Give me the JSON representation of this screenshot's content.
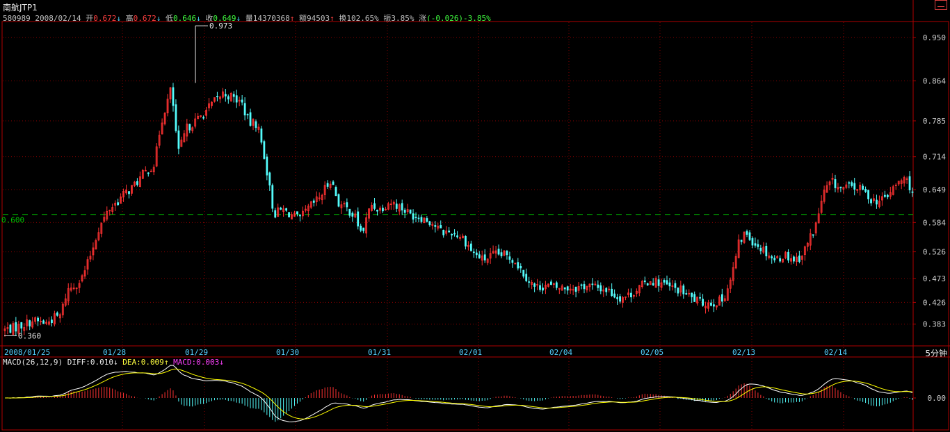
{
  "header": {
    "title": "南航JTP1",
    "code": "580989",
    "date": "2008/02/14",
    "open_label": "开",
    "open": "0.672",
    "high_label": "高",
    "high": "0.672",
    "low_label": "低",
    "low": "0.646",
    "close_label": "收",
    "close": "0.649",
    "vol_label": "量",
    "vol": "14370368",
    "amt_label": "额",
    "amt": "94503",
    "turn_label": "换",
    "turn": "102.65%",
    "amp_label": "振",
    "amp": "3.85%",
    "chg_label": "涨",
    "chg": "(-0.026)-3.85%",
    "arrow_up": "↑",
    "arrow_down": "↓"
  },
  "period_label": "5分钟",
  "macd_header": {
    "label": "MACD(26,12,9)",
    "diff": "DIFF:0.010",
    "dea": "DEA:0.009",
    "macd": "MACD:0.003",
    "diff_arrow": "↓",
    "dea_arrow": "↑",
    "macd_arrow": "↓"
  },
  "colors": {
    "up": "#ff3232",
    "down": "#54fcfc",
    "grid": "#8b0000",
    "frame": "#b00000",
    "ref": "#00c000",
    "macd_diff": "#ffffff",
    "macd_dea": "#ffff00"
  },
  "chart_data": [
    {
      "type": "candlestick",
      "ylim": [
        0.34,
        0.98
      ],
      "y_ticks": [
        "0.950",
        "0.864",
        "0.785",
        "0.714",
        "0.649",
        "0.584",
        "0.526",
        "0.473",
        "0.426",
        "0.383"
      ],
      "y_tick_values": [
        0.95,
        0.864,
        0.785,
        0.714,
        0.649,
        0.584,
        0.526,
        0.473,
        0.426,
        0.383
      ],
      "x_labels": [
        "2008/01/25",
        "01/28",
        "01/29",
        "01/30",
        "01/31",
        "02/01",
        "02/04",
        "02/05",
        "02/13",
        "02/14"
      ],
      "reference_line": {
        "value": 0.6,
        "label": "0.600"
      },
      "annotations": [
        {
          "label": "0.973",
          "value": 0.973,
          "bar": 69
        },
        {
          "label": "0.360",
          "value": 0.36,
          "bar": 0
        }
      ],
      "n_bars": 330,
      "close_path": [
        [
          0,
          0.372
        ],
        [
          20,
          0.378
        ],
        [
          40,
          0.39
        ],
        [
          60,
          0.385
        ],
        [
          70,
          0.395
        ],
        [
          80,
          0.4
        ],
        [
          90,
          0.45
        ],
        [
          110,
          0.47
        ],
        [
          120,
          0.505
        ],
        [
          135,
          0.57
        ],
        [
          150,
          0.61
        ],
        [
          162,
          0.625
        ],
        [
          172,
          0.64
        ],
        [
          185,
          0.655
        ],
        [
          200,
          0.68
        ],
        [
          216,
          0.7
        ],
        [
          225,
          0.78
        ],
        [
          240,
          0.85
        ],
        [
          250,
          0.72
        ],
        [
          262,
          0.77
        ],
        [
          280,
          0.79
        ],
        [
          300,
          0.82
        ],
        [
          315,
          0.84
        ],
        [
          330,
          0.83
        ],
        [
          342,
          0.82
        ],
        [
          352,
          0.78
        ],
        [
          364,
          0.78
        ],
        [
          375,
          0.71
        ],
        [
          388,
          0.6
        ],
        [
          400,
          0.61
        ],
        [
          412,
          0.6
        ],
        [
          425,
          0.59
        ],
        [
          440,
          0.615
        ],
        [
          455,
          0.635
        ],
        [
          470,
          0.67
        ],
        [
          482,
          0.62
        ],
        [
          495,
          0.61
        ],
        [
          505,
          0.595
        ],
        [
          515,
          0.56
        ],
        [
          528,
          0.62
        ],
        [
          540,
          0.61
        ],
        [
          555,
          0.625
        ],
        [
          570,
          0.615
        ],
        [
          585,
          0.6
        ],
        [
          600,
          0.595
        ],
        [
          615,
          0.585
        ],
        [
          630,
          0.565
        ],
        [
          645,
          0.565
        ],
        [
          660,
          0.555
        ],
        [
          675,
          0.525
        ],
        [
          690,
          0.51
        ],
        [
          705,
          0.52
        ],
        [
          720,
          0.52
        ],
        [
          735,
          0.51
        ],
        [
          750,
          0.48
        ],
        [
          765,
          0.455
        ],
        [
          780,
          0.46
        ],
        [
          795,
          0.455
        ],
        [
          810,
          0.455
        ],
        [
          825,
          0.455
        ],
        [
          840,
          0.46
        ],
        [
          855,
          0.455
        ],
        [
          870,
          0.45
        ],
        [
          885,
          0.435
        ],
        [
          900,
          0.44
        ],
        [
          915,
          0.455
        ],
        [
          930,
          0.47
        ],
        [
          945,
          0.465
        ],
        [
          960,
          0.455
        ],
        [
          975,
          0.45
        ],
        [
          990,
          0.435
        ],
        [
          1005,
          0.425
        ],
        [
          1020,
          0.425
        ],
        [
          1035,
          0.43
        ],
        [
          1048,
          0.475
        ],
        [
          1058,
          0.54
        ],
        [
          1068,
          0.565
        ],
        [
          1080,
          0.545
        ],
        [
          1095,
          0.53
        ],
        [
          1110,
          0.51
        ],
        [
          1125,
          0.52
        ],
        [
          1140,
          0.51
        ],
        [
          1150,
          0.52
        ],
        [
          1160,
          0.55
        ],
        [
          1170,
          0.58
        ],
        [
          1180,
          0.64
        ],
        [
          1192,
          0.665
        ],
        [
          1205,
          0.65
        ],
        [
          1220,
          0.655
        ],
        [
          1235,
          0.65
        ],
        [
          1250,
          0.63
        ],
        [
          1262,
          0.625
        ],
        [
          1275,
          0.64
        ],
        [
          1290,
          0.665
        ],
        [
          1300,
          0.67
        ],
        [
          1309,
          0.645
        ]
      ]
    },
    {
      "type": "macd",
      "title": "MACD(26,12,9)",
      "y_ticks": [
        "0.00"
      ],
      "y_tick_values": [
        0
      ]
    }
  ]
}
